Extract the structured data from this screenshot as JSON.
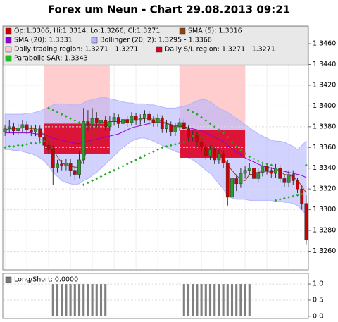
{
  "chart_data": [
    {
      "type": "candlestick",
      "title": "Forex um Neun - Chart 29.08.2013 09:21",
      "legend": [
        {
          "label": "Op:1.3306, Hi:1.3314, Lo:1.3266, Cl:1.3271",
          "color": "#cc0000"
        },
        {
          "label": "SMA (5): 1.3316",
          "color": "#8b4513"
        },
        {
          "label": "SMA (20): 1.3331",
          "color": "#9400d3"
        },
        {
          "label": "Bollinger (20, 2): 1.3295 - 1.3366",
          "color": "#b4b4ff"
        },
        {
          "label": "Daily trading region: 1.3271 - 1.3271",
          "color": "#ffc8c8"
        },
        {
          "label": "Daily S/L region: 1.3271 - 1.3271",
          "color": "#dd0022"
        },
        {
          "label": "Parabolic SAR: 1.3343",
          "color": "#22bb22"
        }
      ],
      "open": [
        1.3375,
        1.3378,
        1.338,
        1.3376,
        1.3379,
        1.3382,
        1.3377,
        1.3375,
        1.3378,
        1.337,
        1.3362,
        1.3358,
        1.334,
        1.3344,
        1.3342,
        1.3345,
        1.3338,
        1.3334,
        1.3348,
        1.3385,
        1.3382,
        1.3388,
        1.3384,
        1.3386,
        1.338,
        1.3385,
        1.3389,
        1.3383,
        1.3387,
        1.3384,
        1.339,
        1.3386,
        1.3388,
        1.3392,
        1.3386,
        1.3384,
        1.3388,
        1.3378,
        1.3382,
        1.3375,
        1.338,
        1.3384,
        1.3378,
        1.337,
        1.3372,
        1.3365,
        1.336,
        1.3352,
        1.3358,
        1.3348,
        1.3354,
        1.3345,
        1.3312,
        1.333,
        1.3325,
        1.3335,
        1.3338,
        1.334,
        1.333,
        1.3336,
        1.3342,
        1.3338,
        1.3335,
        1.334,
        1.333,
        1.3326,
        1.3334,
        1.3328,
        1.332,
        1.3306
      ],
      "high": [
        1.3382,
        1.3386,
        1.3384,
        1.3383,
        1.3386,
        1.3385,
        1.3381,
        1.3382,
        1.3381,
        1.3374,
        1.3366,
        1.3362,
        1.3348,
        1.3348,
        1.3349,
        1.3349,
        1.3342,
        1.3356,
        1.3398,
        1.3396,
        1.3398,
        1.3394,
        1.3392,
        1.339,
        1.339,
        1.3393,
        1.3392,
        1.3391,
        1.339,
        1.3394,
        1.3393,
        1.3392,
        1.3396,
        1.3395,
        1.339,
        1.3392,
        1.3391,
        1.3386,
        1.3385,
        1.3384,
        1.3388,
        1.3387,
        1.3381,
        1.3376,
        1.3375,
        1.3368,
        1.3363,
        1.3362,
        1.3361,
        1.3358,
        1.3357,
        1.3348,
        1.3334,
        1.3334,
        1.334,
        1.3342,
        1.3345,
        1.3343,
        1.334,
        1.3346,
        1.3345,
        1.3341,
        1.3344,
        1.3343,
        1.3334,
        1.3338,
        1.3338,
        1.3331,
        1.3323,
        1.3314
      ],
      "low": [
        1.3371,
        1.3374,
        1.3372,
        1.3372,
        1.3375,
        1.3373,
        1.3371,
        1.3371,
        1.3366,
        1.3358,
        1.3354,
        1.3324,
        1.3336,
        1.3338,
        1.3338,
        1.3332,
        1.3328,
        1.333,
        1.3344,
        1.3376,
        1.3378,
        1.338,
        1.338,
        1.3376,
        1.3376,
        1.3381,
        1.3379,
        1.338,
        1.338,
        1.3381,
        1.3382,
        1.3382,
        1.3384,
        1.3382,
        1.338,
        1.338,
        1.3374,
        1.3374,
        1.3371,
        1.3371,
        1.3376,
        1.3374,
        1.3366,
        1.3366,
        1.3361,
        1.3356,
        1.3348,
        1.3348,
        1.3344,
        1.3344,
        1.334,
        1.3304,
        1.3306,
        1.3318,
        1.3321,
        1.333,
        1.3334,
        1.3326,
        1.3326,
        1.3332,
        1.3334,
        1.3331,
        1.3331,
        1.3326,
        1.3322,
        1.3322,
        1.3324,
        1.3316,
        1.33,
        1.3266
      ],
      "close": [
        1.3378,
        1.338,
        1.3376,
        1.3379,
        1.3382,
        1.3377,
        1.3375,
        1.3378,
        1.337,
        1.3362,
        1.3358,
        1.334,
        1.3344,
        1.3342,
        1.3345,
        1.3338,
        1.3334,
        1.3348,
        1.3385,
        1.3382,
        1.3388,
        1.3384,
        1.3386,
        1.338,
        1.3385,
        1.3389,
        1.3383,
        1.3387,
        1.3384,
        1.339,
        1.3386,
        1.3388,
        1.3392,
        1.3386,
        1.3384,
        1.3388,
        1.3378,
        1.3382,
        1.3375,
        1.338,
        1.3384,
        1.3378,
        1.337,
        1.3372,
        1.3365,
        1.336,
        1.3352,
        1.3358,
        1.3348,
        1.3354,
        1.3345,
        1.3312,
        1.333,
        1.3325,
        1.3335,
        1.3338,
        1.334,
        1.333,
        1.3336,
        1.3342,
        1.3338,
        1.3335,
        1.334,
        1.333,
        1.3326,
        1.3334,
        1.3328,
        1.332,
        1.3306,
        1.3271
      ],
      "up_color": "#2e9a2e",
      "down_color": "#cc0000",
      "overlays": [
        {
          "style": "band",
          "color": "#b4b4ff",
          "upper": [
            1.3392,
            1.3392,
            1.3392,
            1.3392,
            1.3392,
            1.3393,
            1.3393,
            1.3394,
            1.3395,
            1.3397,
            1.3399,
            1.3401,
            1.3402,
            1.3402,
            1.3402,
            1.3401,
            1.3401,
            1.3401,
            1.3403,
            1.3405,
            1.3406,
            1.3407,
            1.3408,
            1.3408,
            1.3407,
            1.3406,
            1.3405,
            1.3404,
            1.3403,
            1.3403,
            1.3402,
            1.3402,
            1.3402,
            1.3401,
            1.3401,
            1.34,
            1.3399,
            1.3398,
            1.3398,
            1.3398,
            1.3399,
            1.34,
            1.3401,
            1.3403,
            1.3405,
            1.3406,
            1.3406,
            1.3404,
            1.3401,
            1.3398,
            1.3396,
            1.3394,
            1.3391,
            1.3388,
            1.3385,
            1.3382,
            1.3379,
            1.3376,
            1.3373,
            1.3371,
            1.3369,
            1.3367,
            1.3366,
            1.3366,
            1.3365,
            1.3363,
            1.3361,
            1.3358,
            1.3362,
            1.3366
          ],
          "lower": [
            1.3358,
            1.3358,
            1.3357,
            1.3357,
            1.3356,
            1.3355,
            1.3354,
            1.3352,
            1.335,
            1.3347,
            1.3342,
            1.3336,
            1.3332,
            1.3328,
            1.3326,
            1.3325,
            1.3324,
            1.3325,
            1.3328,
            1.333,
            1.3333,
            1.3336,
            1.334,
            1.3344,
            1.3348,
            1.3352,
            1.3356,
            1.336,
            1.3363,
            1.3366,
            1.3368,
            1.3369,
            1.3369,
            1.3368,
            1.3366,
            1.3364,
            1.3362,
            1.336,
            1.3358,
            1.3356,
            1.3355,
            1.3353,
            1.335,
            1.3348,
            1.3345,
            1.3342,
            1.3338,
            1.3335,
            1.333,
            1.3325,
            1.332,
            1.3314,
            1.3311,
            1.331,
            1.331,
            1.331,
            1.3309,
            1.3309,
            1.3309,
            1.3309,
            1.3309,
            1.3309,
            1.3308,
            1.3308,
            1.3307,
            1.3307,
            1.3306,
            1.3304,
            1.33,
            1.3295
          ]
        },
        {
          "style": "line",
          "color": "#9400d3",
          "values": [
            1.3374,
            1.3374,
            1.3374,
            1.3374,
            1.3374,
            1.3374,
            1.3374,
            1.3373,
            1.3373,
            1.3372,
            1.3371,
            1.3369,
            1.3368,
            1.3367,
            1.3366,
            1.3365,
            1.3364,
            1.3364,
            1.3365,
            1.3366,
            1.3367,
            1.3368,
            1.3369,
            1.337,
            1.3371,
            1.3372,
            1.3373,
            1.3375,
            1.3377,
            1.3379,
            1.338,
            1.3381,
            1.3382,
            1.3383,
            1.3384,
            1.3385,
            1.3384,
            1.3383,
            1.3382,
            1.3381,
            1.3381,
            1.338,
            1.3379,
            1.3378,
            1.3377,
            1.3376,
            1.3374,
            1.3372,
            1.337,
            1.3368,
            1.3366,
            1.3362,
            1.3359,
            1.3356,
            1.3353,
            1.335,
            1.3348,
            1.3346,
            1.3344,
            1.3342,
            1.3341,
            1.334,
            1.3339,
            1.3338,
            1.3337,
            1.3336,
            1.3335,
            1.3334,
            1.3333,
            1.3331
          ]
        },
        {
          "style": "line",
          "color": "#8b4513",
          "values": [
            1.3377,
            1.3378,
            1.3378,
            1.3378,
            1.3379,
            1.3379,
            1.3378,
            1.3378,
            1.3376,
            1.3372,
            1.3367,
            1.3358,
            1.3351,
            1.3345,
            1.3343,
            1.3342,
            1.3341,
            1.3341,
            1.335,
            1.3357,
            1.3367,
            1.3377,
            1.3385,
            1.3384,
            1.3385,
            1.3385,
            1.3385,
            1.3385,
            1.3386,
            1.3387,
            1.3386,
            1.3387,
            1.3388,
            1.3388,
            1.3387,
            1.3388,
            1.3384,
            1.3384,
            1.3381,
            1.338,
            1.338,
            1.338,
            1.3377,
            1.3377,
            1.3374,
            1.337,
            1.3364,
            1.3361,
            1.3357,
            1.3354,
            1.3351,
            1.3343,
            1.3338,
            1.3333,
            1.3329,
            1.3328,
            1.3334,
            1.3334,
            1.3336,
            1.3337,
            1.3337,
            1.3336,
            1.3338,
            1.3337,
            1.3334,
            1.3333,
            1.3332,
            1.3328,
            1.3323,
            1.3316
          ]
        },
        {
          "style": "dots",
          "color": "#22aa22",
          "values": [
            1.336,
            1.3361,
            1.3361,
            1.3362,
            1.3362,
            1.3363,
            1.3364,
            1.3364,
            1.3365,
            1.3366,
            1.3398,
            1.3396,
            1.3394,
            1.3392,
            1.339,
            1.3388,
            1.3386,
            1.3384,
            1.3324,
            1.3326,
            1.3328,
            1.333,
            1.3332,
            1.3334,
            1.3336,
            1.3338,
            1.334,
            1.3342,
            1.3344,
            1.3346,
            1.3348,
            1.335,
            1.3352,
            1.3354,
            1.3356,
            1.3358,
            1.336,
            1.3361,
            1.3362,
            1.3363,
            1.3364,
            1.3365,
            1.3396,
            1.3394,
            1.3392,
            1.3389,
            1.3386,
            1.3383,
            1.338,
            1.3377,
            1.3374,
            1.337,
            1.3365,
            1.3361,
            1.3357,
            1.3354,
            1.3351,
            1.3349,
            1.3347,
            1.3345,
            1.3344,
            1.3343,
            1.3309,
            1.331,
            1.3311,
            1.3312,
            1.3313,
            1.3314,
            1.3315,
            1.3343
          ]
        }
      ],
      "trading_regions": [
        {
          "start": 9,
          "end": 24,
          "high": 1.3441,
          "low": 1.3383
        },
        {
          "start": 40,
          "end": 55,
          "high": 1.3441,
          "low": 1.3377
        }
      ],
      "trading_region_color": "#ffc8c8",
      "sl_regions": [
        {
          "start": 9,
          "end": 24,
          "high": 1.3383,
          "low": 1.3354
        },
        {
          "start": 40,
          "end": 55,
          "high": 1.3377,
          "low": 1.335
        }
      ],
      "sl_region_color": "#dd0022",
      "ylim": [
        1.3242,
        1.3477
      ],
      "yticks": [
        {
          "value": 1.326,
          "label": "1.3260"
        },
        {
          "value": 1.328,
          "label": "1.3280"
        },
        {
          "value": 1.33,
          "label": "1.3300"
        },
        {
          "value": 1.332,
          "label": "1.3320"
        },
        {
          "value": 1.334,
          "label": "1.3340"
        },
        {
          "value": 1.336,
          "label": "1.3360"
        },
        {
          "value": 1.338,
          "label": "1.3380"
        },
        {
          "value": 1.34,
          "label": "1.3400"
        },
        {
          "value": 1.342,
          "label": "1.3420"
        },
        {
          "value": 1.344,
          "label": "1.3440"
        },
        {
          "value": 1.346,
          "label": "1.3460"
        }
      ],
      "grid": true
    },
    {
      "type": "bar",
      "legend": [
        {
          "label": "Long/Short: 0.0000",
          "color": "#777777"
        }
      ],
      "color": "#808080",
      "values": [
        0,
        0,
        0,
        0,
        0,
        0,
        0,
        0,
        0,
        0,
        0,
        1,
        1,
        1,
        1,
        1,
        1,
        1,
        1,
        1,
        1,
        1,
        1,
        1,
        0,
        0,
        0,
        0,
        0,
        0,
        0,
        0,
        0,
        0,
        0,
        0,
        0,
        0,
        0,
        0,
        0,
        1,
        1,
        1,
        1,
        1,
        1,
        1,
        1,
        1,
        1,
        1,
        1,
        1,
        1,
        1,
        1,
        0,
        0,
        0,
        0,
        0,
        0,
        0,
        0,
        0,
        0,
        0,
        0,
        0
      ],
      "ylim": [
        -0.07,
        1.33
      ],
      "yticks": [
        {
          "value": 0,
          "label": "0.0"
        },
        {
          "value": 0.5,
          "label": "0.5"
        },
        {
          "value": 1,
          "label": "1.0"
        }
      ],
      "grid": true
    }
  ]
}
